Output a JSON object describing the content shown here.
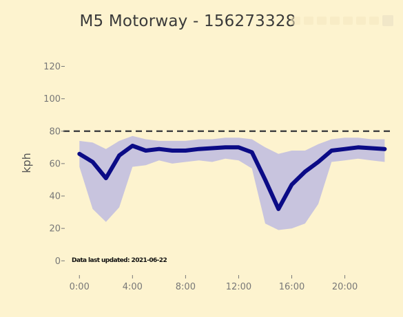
{
  "chart_data": {
    "type": "line",
    "title": "M5 Motorway  -  156273328",
    "xlabel": "",
    "ylabel": "kph",
    "x": [
      0,
      1,
      2,
      3,
      4,
      5,
      6,
      7,
      8,
      9,
      10,
      11,
      12,
      13,
      14,
      15,
      16,
      17,
      18,
      19,
      20,
      21,
      22,
      23
    ],
    "x_ticks": [
      {
        "value": 0,
        "label": "0:00"
      },
      {
        "value": 4,
        "label": "4:00"
      },
      {
        "value": 8,
        "label": "8:00"
      },
      {
        "value": 12,
        "label": "12:00"
      },
      {
        "value": 16,
        "label": "16:00"
      },
      {
        "value": 20,
        "label": "20:00"
      }
    ],
    "y_ticks": [
      {
        "value": 0,
        "label": "0"
      },
      {
        "value": 20,
        "label": "20"
      },
      {
        "value": 40,
        "label": "40"
      },
      {
        "value": 60,
        "label": "60"
      },
      {
        "value": 80,
        "label": "80"
      },
      {
        "value": 100,
        "label": "100"
      },
      {
        "value": 120,
        "label": "120"
      }
    ],
    "xlim": [
      -1,
      23.5
    ],
    "ylim": [
      -2,
      127
    ],
    "series": [
      {
        "values": [
          66,
          61,
          51,
          65,
          71,
          68,
          69,
          68,
          68,
          69,
          69.5,
          70,
          70,
          67,
          50,
          32,
          47,
          55,
          61,
          68,
          69,
          70,
          69.5,
          69
        ],
        "color": "#0b0b86"
      }
    ],
    "band": {
      "upper": [
        74,
        73,
        69,
        74,
        77,
        75,
        74,
        74,
        74,
        75,
        75,
        76,
        76,
        75,
        70,
        66,
        68,
        68,
        72,
        75,
        76,
        76,
        75,
        75
      ],
      "lower": [
        58,
        32,
        24,
        33,
        58,
        59,
        62,
        60,
        61,
        62,
        61,
        63,
        62,
        57,
        23,
        19,
        20,
        23,
        35,
        61,
        62,
        63,
        62,
        61
      ],
      "color": "#c8c4de"
    },
    "reference_line": {
      "value": 80,
      "color": "#444444"
    },
    "grid": false,
    "legend": "none",
    "footnote": "Data last updated: 2021-06-22"
  }
}
